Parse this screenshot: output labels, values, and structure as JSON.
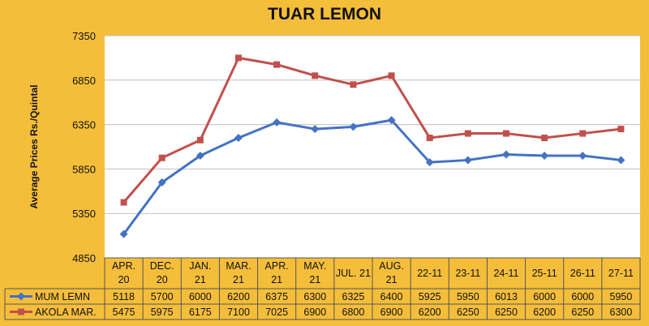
{
  "chart_data": {
    "type": "line",
    "title": "TUAR LEMON",
    "xlabel": "",
    "ylabel": "Average Prices  Rs./Quintal",
    "ylim": [
      4850,
      7350
    ],
    "yticks": [
      4850,
      5350,
      5850,
      6350,
      6850,
      7350
    ],
    "grid": true,
    "legend_placement": "data-table-left",
    "categories": [
      [
        "APR.",
        "20"
      ],
      [
        "DEC.",
        "20"
      ],
      [
        "JAN.",
        "21"
      ],
      [
        "MAR.",
        "21"
      ],
      [
        "APR.",
        "21"
      ],
      [
        "MAY.",
        "21"
      ],
      [
        "JUL. 21"
      ],
      [
        "AUG.",
        "21"
      ],
      [
        "22-11"
      ],
      [
        "23-11"
      ],
      [
        "24-11"
      ],
      [
        "25-11"
      ],
      [
        "26-11"
      ],
      [
        "27-11"
      ]
    ],
    "series": [
      {
        "name": "MUM LEMN",
        "color": "#4472C4",
        "marker": "diamond",
        "values": [
          5118,
          5700,
          6000,
          6200,
          6375,
          6300,
          6325,
          6400,
          5925,
          5950,
          6013,
          6000,
          6000,
          5950
        ]
      },
      {
        "name": "AKOLA MAR.",
        "color": "#C0504D",
        "marker": "square",
        "values": [
          5475,
          5975,
          6175,
          7100,
          7025,
          6900,
          6800,
          6900,
          6200,
          6250,
          6250,
          6200,
          6250,
          6300
        ]
      }
    ]
  },
  "colors": {
    "background": "#F5BE3A",
    "plot_area": "#FFFFFF",
    "gridline": "#BFBFBF"
  }
}
